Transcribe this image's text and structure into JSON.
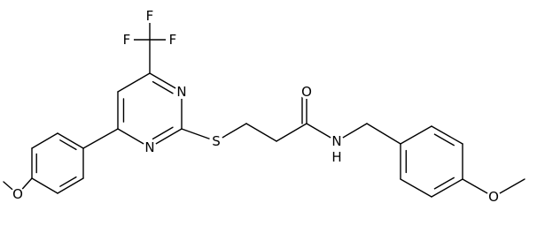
{
  "atom_labels": [
    "F",
    "F",
    "F",
    "N",
    "N",
    "S",
    "O",
    "N",
    "H",
    "O",
    "O"
  ]
}
